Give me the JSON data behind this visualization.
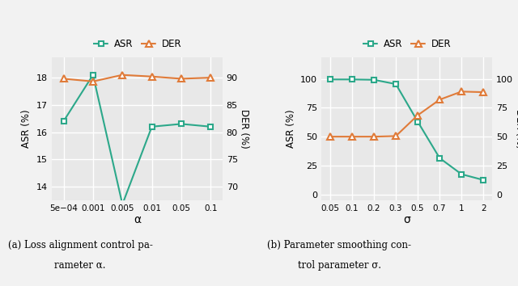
{
  "left": {
    "x_labels": [
      "5e−04",
      "0.001",
      "0.005",
      "0.01",
      "0.05",
      "0.1"
    ],
    "asr": [
      16.4,
      18.1,
      13.35,
      16.2,
      16.3,
      16.2
    ],
    "der": [
      89.8,
      89.3,
      90.5,
      90.2,
      89.8,
      90.0
    ],
    "asr_ylim": [
      13.5,
      18.75
    ],
    "der_ylim": [
      67.5,
      93.75
    ],
    "asr_yticks": [
      14,
      15,
      16,
      17,
      18
    ],
    "der_yticks": [
      70,
      75,
      80,
      85,
      90
    ],
    "xlabel": "α",
    "ylabel_left": "ASR (%)",
    "ylabel_right": "DER (%)"
  },
  "right": {
    "x_labels": [
      "0.05",
      "0.1",
      "0.2",
      "0.3",
      "0.5",
      "0.7",
      "1",
      "2"
    ],
    "asr": [
      99.5,
      99.5,
      99.2,
      95.5,
      63.0,
      31.5,
      17.5,
      12.5
    ],
    "der": [
      50.0,
      50.0,
      50.0,
      50.5,
      68.5,
      82.0,
      89.0,
      88.5
    ],
    "asr_ylim": [
      -5,
      118.75
    ],
    "der_ylim": [
      -5,
      118.75
    ],
    "asr_yticks": [
      0,
      25,
      50,
      75,
      100
    ],
    "der_yticks": [
      0,
      25,
      50,
      75,
      100
    ],
    "xlabel": "σ",
    "ylabel_left": "ASR (%)",
    "ylabel_right": "DER (%)"
  },
  "asr_color": "#2ca88a",
  "der_color": "#e07b39",
  "bg_color": "#e8e8e8",
  "grid_color": "#ffffff",
  "fig_bg": "#f2f2f2",
  "legend_labels": [
    "ASR",
    "DER"
  ]
}
